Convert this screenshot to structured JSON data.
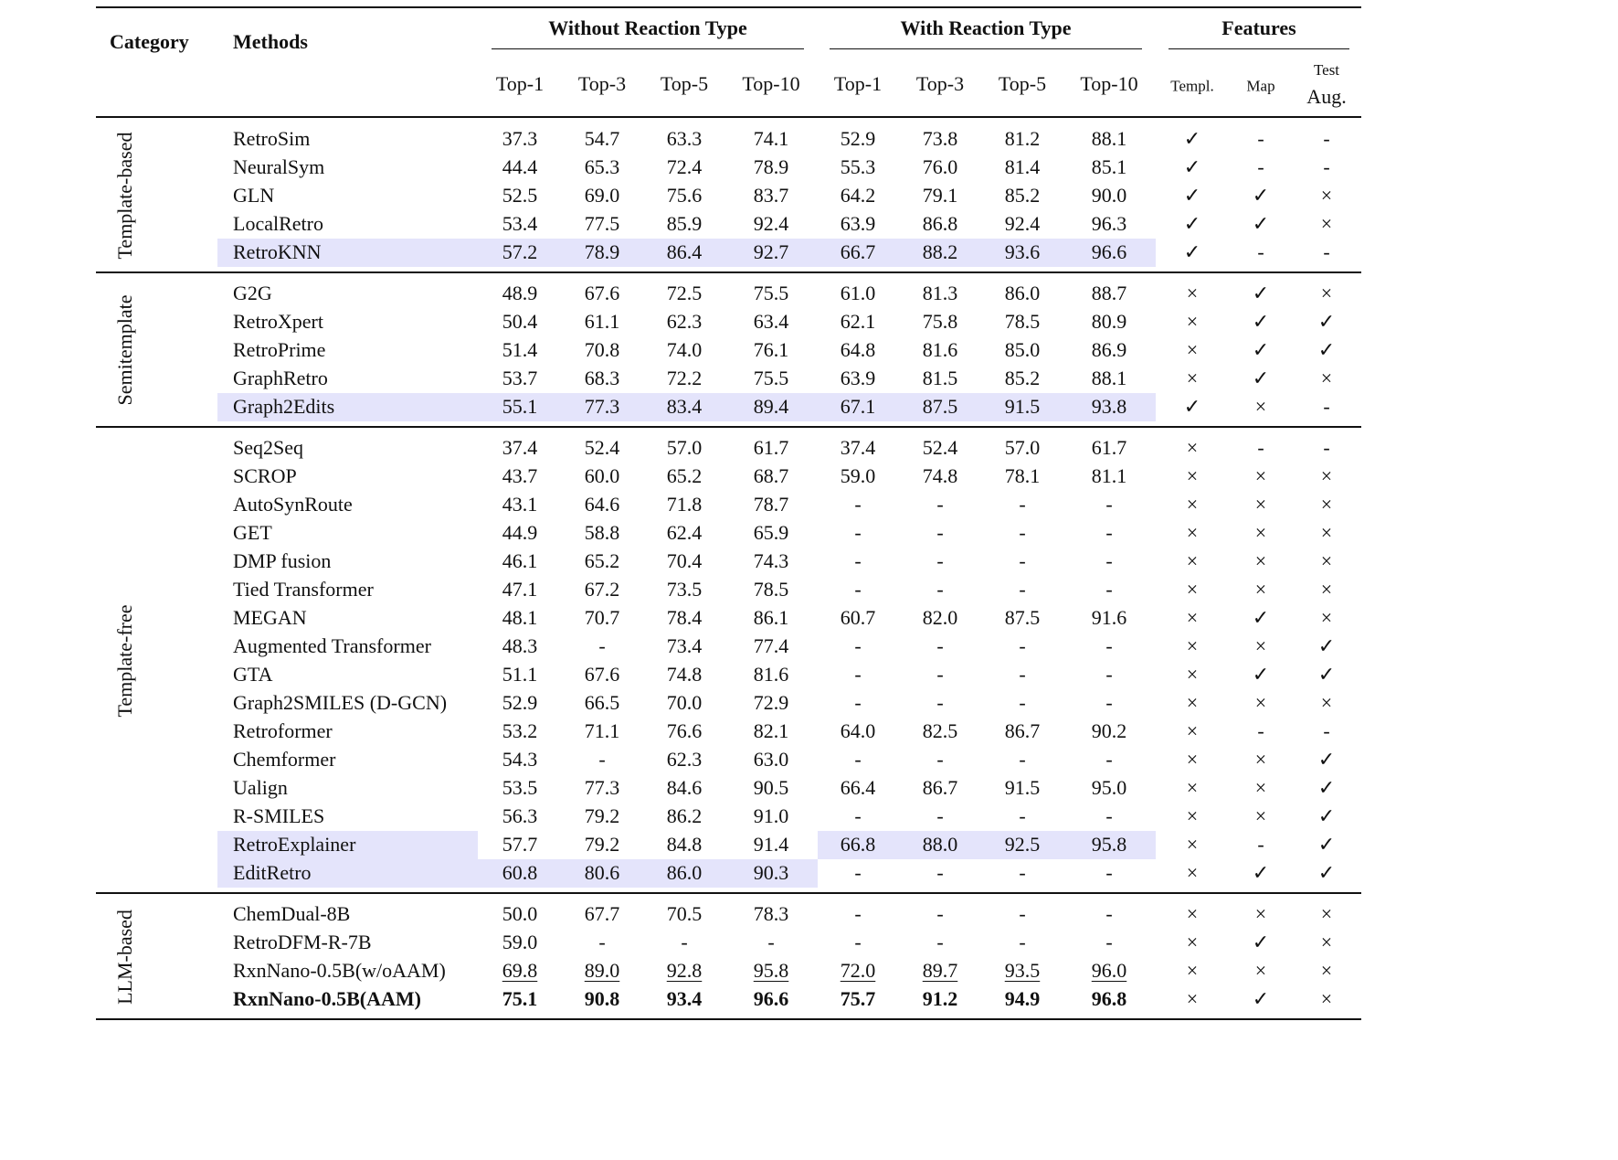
{
  "header": {
    "category": "Category",
    "methods": "Methods",
    "groups": [
      {
        "title": "Without Reaction Type",
        "subheads": [
          "Top-1",
          "Top-3",
          "Top-5",
          "Top-10"
        ]
      },
      {
        "title": "With Reaction Type",
        "subheads": [
          "Top-1",
          "Top-3",
          "Top-5",
          "Top-10"
        ]
      },
      {
        "title": "Features",
        "subheads": [
          "Templ.",
          "Map",
          "Test\nAug."
        ]
      }
    ]
  },
  "sections": [
    {
      "category": "Template-based",
      "rows": [
        {
          "method": "RetroSim",
          "without": [
            "37.3",
            "54.7",
            "63.3",
            "74.1"
          ],
          "with": [
            "52.9",
            "73.8",
            "81.2",
            "88.1"
          ],
          "features": [
            "✓",
            "-",
            "-"
          ]
        },
        {
          "method": "NeuralSym",
          "without": [
            "44.4",
            "65.3",
            "72.4",
            "78.9"
          ],
          "with": [
            "55.3",
            "76.0",
            "81.4",
            "85.1"
          ],
          "features": [
            "✓",
            "-",
            "-"
          ]
        },
        {
          "method": "GLN",
          "without": [
            "52.5",
            "69.0",
            "75.6",
            "83.7"
          ],
          "with": [
            "64.2",
            "79.1",
            "85.2",
            "90.0"
          ],
          "features": [
            "✓",
            "✓",
            "×"
          ]
        },
        {
          "method": "LocalRetro",
          "without": [
            "53.4",
            "77.5",
            "85.9",
            "92.4"
          ],
          "with": [
            "63.9",
            "86.8",
            "92.4",
            "96.3"
          ],
          "features": [
            "✓",
            "✓",
            "×"
          ]
        },
        {
          "method": "RetroKNN",
          "without": [
            "57.2",
            "78.9",
            "86.4",
            "92.7"
          ],
          "with": [
            "66.7",
            "88.2",
            "93.6",
            "96.6"
          ],
          "features": [
            "✓",
            "-",
            "-"
          ],
          "highlight": [
            "method",
            "without",
            "with"
          ]
        }
      ]
    },
    {
      "category": "Semitemplate",
      "rows": [
        {
          "method": "G2G",
          "without": [
            "48.9",
            "67.6",
            "72.5",
            "75.5"
          ],
          "with": [
            "61.0",
            "81.3",
            "86.0",
            "88.7"
          ],
          "features": [
            "×",
            "✓",
            "×"
          ]
        },
        {
          "method": "RetroXpert",
          "without": [
            "50.4",
            "61.1",
            "62.3",
            "63.4"
          ],
          "with": [
            "62.1",
            "75.8",
            "78.5",
            "80.9"
          ],
          "features": [
            "×",
            "✓",
            "✓"
          ]
        },
        {
          "method": "RetroPrime",
          "without": [
            "51.4",
            "70.8",
            "74.0",
            "76.1"
          ],
          "with": [
            "64.8",
            "81.6",
            "85.0",
            "86.9"
          ],
          "features": [
            "×",
            "✓",
            "✓"
          ]
        },
        {
          "method": "GraphRetro",
          "without": [
            "53.7",
            "68.3",
            "72.2",
            "75.5"
          ],
          "with": [
            "63.9",
            "81.5",
            "85.2",
            "88.1"
          ],
          "features": [
            "×",
            "✓",
            "×"
          ]
        },
        {
          "method": "Graph2Edits",
          "without": [
            "55.1",
            "77.3",
            "83.4",
            "89.4"
          ],
          "with": [
            "67.1",
            "87.5",
            "91.5",
            "93.8"
          ],
          "features": [
            "✓",
            "×",
            "-"
          ],
          "highlight": [
            "method",
            "without",
            "with"
          ]
        }
      ]
    },
    {
      "category": "Template-free",
      "rows": [
        {
          "method": "Seq2Seq",
          "without": [
            "37.4",
            "52.4",
            "57.0",
            "61.7"
          ],
          "with": [
            "37.4",
            "52.4",
            "57.0",
            "61.7"
          ],
          "features": [
            "×",
            "-",
            "-"
          ]
        },
        {
          "method": "SCROP",
          "without": [
            "43.7",
            "60.0",
            "65.2",
            "68.7"
          ],
          "with": [
            "59.0",
            "74.8",
            "78.1",
            "81.1"
          ],
          "features": [
            "×",
            "×",
            "×"
          ]
        },
        {
          "method": "AutoSynRoute",
          "without": [
            "43.1",
            "64.6",
            "71.8",
            "78.7"
          ],
          "with": [
            "-",
            "-",
            "-",
            "-"
          ],
          "features": [
            "×",
            "×",
            "×"
          ]
        },
        {
          "method": "GET",
          "without": [
            "44.9",
            "58.8",
            "62.4",
            "65.9"
          ],
          "with": [
            "-",
            "-",
            "-",
            "-"
          ],
          "features": [
            "×",
            "×",
            "×"
          ]
        },
        {
          "method": "DMP fusion",
          "without": [
            "46.1",
            "65.2",
            "70.4",
            "74.3"
          ],
          "with": [
            "-",
            "-",
            "-",
            "-"
          ],
          "features": [
            "×",
            "×",
            "×"
          ]
        },
        {
          "method": "Tied Transformer",
          "without": [
            "47.1",
            "67.2",
            "73.5",
            "78.5"
          ],
          "with": [
            "-",
            "-",
            "-",
            "-"
          ],
          "features": [
            "×",
            "×",
            "×"
          ]
        },
        {
          "method": "MEGAN",
          "without": [
            "48.1",
            "70.7",
            "78.4",
            "86.1"
          ],
          "with": [
            "60.7",
            "82.0",
            "87.5",
            "91.6"
          ],
          "features": [
            "×",
            "✓",
            "×"
          ]
        },
        {
          "method": "Augmented Transformer",
          "without": [
            "48.3",
            "-",
            "73.4",
            "77.4"
          ],
          "with": [
            "-",
            "-",
            "-",
            "-"
          ],
          "features": [
            "×",
            "×",
            "✓"
          ]
        },
        {
          "method": "GTA",
          "without": [
            "51.1",
            "67.6",
            "74.8",
            "81.6"
          ],
          "with": [
            "-",
            "-",
            "-",
            "-"
          ],
          "features": [
            "×",
            "✓",
            "✓"
          ]
        },
        {
          "method": "Graph2SMILES (D-GCN)",
          "without": [
            "52.9",
            "66.5",
            "70.0",
            "72.9"
          ],
          "with": [
            "-",
            "-",
            "-",
            "-"
          ],
          "features": [
            "×",
            "×",
            "×"
          ]
        },
        {
          "method": "Retroformer",
          "without": [
            "53.2",
            "71.1",
            "76.6",
            "82.1"
          ],
          "with": [
            "64.0",
            "82.5",
            "86.7",
            "90.2"
          ],
          "features": [
            "×",
            "-",
            "-"
          ]
        },
        {
          "method": "Chemformer",
          "without": [
            "54.3",
            "-",
            "62.3",
            "63.0"
          ],
          "with": [
            "-",
            "-",
            "-",
            "-"
          ],
          "features": [
            "×",
            "×",
            "✓"
          ]
        },
        {
          "method": "Ualign",
          "without": [
            "53.5",
            "77.3",
            "84.6",
            "90.5"
          ],
          "with": [
            "66.4",
            "86.7",
            "91.5",
            "95.0"
          ],
          "features": [
            "×",
            "×",
            "✓"
          ]
        },
        {
          "method": "R-SMILES",
          "without": [
            "56.3",
            "79.2",
            "86.2",
            "91.0"
          ],
          "with": [
            "-",
            "-",
            "-",
            "-"
          ],
          "features": [
            "×",
            "×",
            "✓"
          ]
        },
        {
          "method": "RetroExplainer",
          "without": [
            "57.7",
            "79.2",
            "84.8",
            "91.4"
          ],
          "with": [
            "66.8",
            "88.0",
            "92.5",
            "95.8"
          ],
          "features": [
            "×",
            "-",
            "✓"
          ],
          "highlight": [
            "method",
            "with"
          ]
        },
        {
          "method": "EditRetro",
          "without": [
            "60.8",
            "80.6",
            "86.0",
            "90.3"
          ],
          "with": [
            "-",
            "-",
            "-",
            "-"
          ],
          "features": [
            "×",
            "✓",
            "✓"
          ],
          "highlight": [
            "method",
            "without"
          ]
        }
      ]
    },
    {
      "category": "LLM-based",
      "rows": [
        {
          "method": "ChemDual-8B",
          "without": [
            "50.0",
            "67.7",
            "70.5",
            "78.3"
          ],
          "with": [
            "-",
            "-",
            "-",
            "-"
          ],
          "features": [
            "×",
            "×",
            "×"
          ]
        },
        {
          "method": "RetroDFM-R-7B",
          "without": [
            "59.0",
            "-",
            "-",
            "-"
          ],
          "with": [
            "-",
            "-",
            "-",
            "-"
          ],
          "features": [
            "×",
            "✓",
            "×"
          ]
        },
        {
          "method": "RxnNano-0.5B(w/oAAM)",
          "without": [
            "69.8",
            "89.0",
            "92.8",
            "95.8"
          ],
          "with": [
            "72.0",
            "89.7",
            "93.5",
            "96.0"
          ],
          "features": [
            "×",
            "×",
            "×"
          ],
          "style": "underline"
        },
        {
          "method": "RxnNano-0.5B(AAM)",
          "without": [
            "75.1",
            "90.8",
            "93.4",
            "96.6"
          ],
          "with": [
            "75.7",
            "91.2",
            "94.9",
            "96.8"
          ],
          "features": [
            "×",
            "✓",
            "×"
          ],
          "style": "bold"
        }
      ]
    }
  ]
}
